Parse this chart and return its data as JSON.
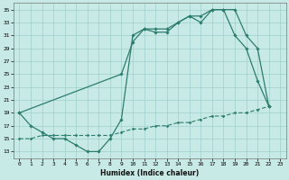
{
  "line1_x": [
    0,
    1,
    2,
    3,
    4,
    5,
    6,
    7,
    8,
    9,
    10,
    11,
    12,
    13,
    14,
    15,
    16,
    17,
    18,
    19,
    20,
    21,
    22
  ],
  "line1_y": [
    19,
    17,
    16,
    15,
    15,
    14,
    13,
    13,
    15,
    18,
    31,
    32,
    31.5,
    31.5,
    33,
    34,
    33,
    35,
    35,
    31,
    29,
    24,
    20
  ],
  "line2_x": [
    0,
    9,
    10,
    11,
    12,
    13,
    14,
    15,
    16,
    17,
    18,
    19,
    20,
    21,
    22
  ],
  "line2_y": [
    19,
    25,
    30,
    32,
    32,
    32,
    33,
    34,
    34,
    35,
    35,
    35,
    31,
    29,
    20
  ],
  "line3_x": [
    0,
    1,
    2,
    3,
    4,
    5,
    6,
    7,
    8,
    9,
    10,
    11,
    12,
    13,
    14,
    15,
    16,
    17,
    18,
    19,
    20,
    21,
    22
  ],
  "line3_y": [
    15,
    15,
    15.5,
    15.5,
    15.5,
    15.5,
    15.5,
    15.5,
    15.5,
    16,
    16.5,
    16.5,
    17,
    17,
    17.5,
    17.5,
    18,
    18.5,
    18.5,
    19,
    19,
    19.5,
    20
  ],
  "color": "#2d7d6e",
  "bg_color": "#c8eae6",
  "grid_color": "#9ecfcb",
  "xlabel": "Humidex (Indice chaleur)",
  "xlim": [
    -0.5,
    23.5
  ],
  "ylim": [
    12,
    36
  ],
  "yticks": [
    13,
    15,
    17,
    19,
    21,
    23,
    25,
    27,
    29,
    31,
    33,
    35
  ],
  "xticks": [
    0,
    1,
    2,
    3,
    4,
    5,
    6,
    7,
    8,
    9,
    10,
    11,
    12,
    13,
    14,
    15,
    16,
    17,
    18,
    19,
    20,
    21,
    22,
    23
  ]
}
